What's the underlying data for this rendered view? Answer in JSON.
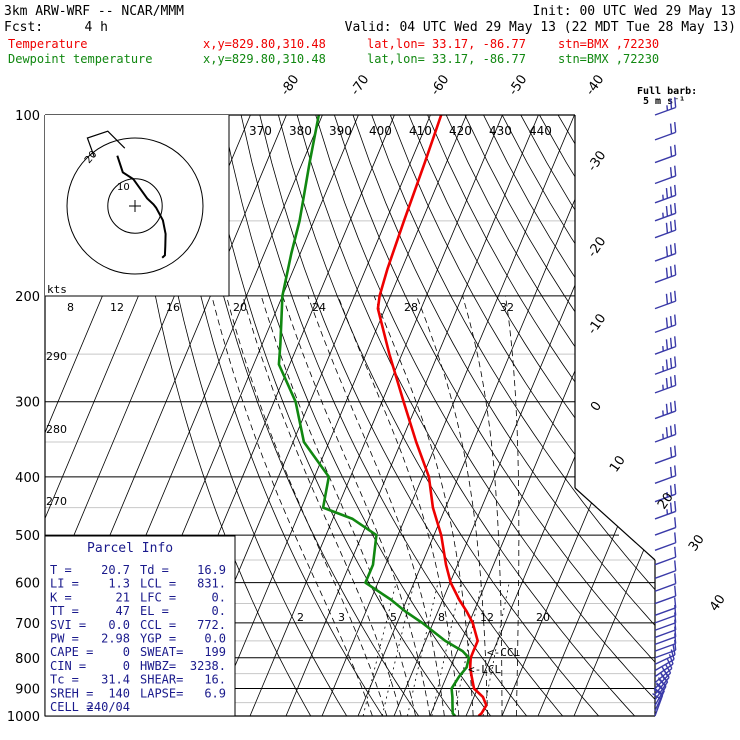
{
  "header": {
    "model": "3km ARW-WRF -- NCAR/MMM",
    "init": "Init: 00 UTC Wed 29 May 13",
    "fcst_label": "Fcst:",
    "fcst_value": "4 h",
    "valid": "Valid: 04 UTC Wed 29 May 13 (22 MDT Tue 28 May 13)"
  },
  "legend": [
    {
      "name": "Temperature",
      "xy": "x,y=829.80,310.48",
      "latlon": "lat,lon= 33.17, -86.77",
      "stn": "stn=BMX ,72230",
      "color": "#ee0000"
    },
    {
      "name": "Dewpoint temperature",
      "xy": "x,y=829.80,310.48",
      "latlon": "lat,lon= 33.17, -86.77",
      "stn": "stn=BMX ,72230",
      "color": "#118811"
    }
  ],
  "barb_legend": {
    "line1": "Full barb:",
    "line2": "5 m s⁻¹"
  },
  "parcel_info": {
    "title": "Parcel Info",
    "rows": [
      [
        "T   =",
        "20.7",
        "Td =",
        "16.9"
      ],
      [
        "LI  =",
        "1.3",
        "LCL =",
        "831."
      ],
      [
        "K   =",
        "21",
        "LFC =",
        "0."
      ],
      [
        "TT  =",
        "47",
        "EL  =",
        "0."
      ],
      [
        "SVI =",
        "0.0",
        "CCL =",
        "772."
      ],
      [
        "PW  =",
        "2.98",
        "YGP =",
        "0.0"
      ],
      [
        "CAPE =",
        "0",
        "SWEAT=",
        "199"
      ],
      [
        "CIN  =",
        "0",
        "HWBZ=",
        "3238."
      ],
      [
        "Tc  =",
        "31.4",
        "SHEAR=",
        "16."
      ],
      [
        "SREH =",
        "140",
        "LAPSE=",
        "6.9"
      ],
      [
        "CELL =",
        "240/04",
        "",
        ""
      ]
    ]
  },
  "hodograph": {
    "kts_label": "kts",
    "ring_labels": [
      "10",
      "20"
    ]
  },
  "chart_data": {
    "type": "line",
    "title": "",
    "ylabel": "",
    "y_scale": "log-pressure",
    "pressure_levels": [
      100,
      200,
      300,
      400,
      500,
      600,
      700,
      800,
      900,
      1000
    ],
    "ylim_hPa": [
      100,
      1000
    ],
    "temperature_isotherm_labels": [
      -80,
      -70,
      -60,
      -50,
      -40,
      -30,
      -20,
      -10,
      0,
      10,
      20,
      30,
      40
    ],
    "theta_labels": [
      370,
      380,
      390,
      400,
      410,
      420,
      430,
      440
    ],
    "theta_e_labels": [
      290,
      280,
      270
    ],
    "mixing_ratio_upper_labels": [
      8,
      12,
      16,
      20,
      24,
      28,
      32
    ],
    "mixing_ratio_lower_labels": [
      2,
      3,
      5,
      8,
      12,
      20
    ],
    "annotations": [
      "<-CCL",
      "<-LCL"
    ],
    "series": [
      {
        "name": "Temperature",
        "color": "#ee0000",
        "p": [
          1000,
          990,
          960,
          930,
          900,
          860,
          830,
          800,
          780,
          750,
          700,
          670,
          640,
          600,
          560,
          500,
          450,
          400,
          350,
          300,
          250,
          210,
          200,
          180,
          150,
          120,
          100
        ],
        "t": [
          23.5,
          24.0,
          24.4,
          22.5,
          19.0,
          17.0,
          15.5,
          14.5,
          14.5,
          14.5,
          11.0,
          8.0,
          4.5,
          0.2,
          -3.2,
          -8.0,
          -13.5,
          -18.2,
          -25.8,
          -34.0,
          -43.5,
          -52.0,
          -53.0,
          -54.0,
          -55.0,
          -56.0,
          -57.0
        ]
      },
      {
        "name": "Dewpoint temperature",
        "color": "#118811",
        "p": [
          1000,
          990,
          960,
          930,
          900,
          860,
          830,
          800,
          780,
          750,
          700,
          670,
          640,
          600,
          560,
          500,
          470,
          450,
          400,
          350,
          300,
          260,
          240,
          200,
          170,
          150,
          120,
          100
        ],
        "t": [
          17.0,
          16.0,
          15.0,
          14.0,
          12.8,
          13.5,
          14.5,
          14.0,
          11.5,
          5.5,
          -3.0,
          -9.0,
          -14.5,
          -23.5,
          -23.5,
          -26.0,
          -34.5,
          -44.0,
          -46.0,
          -57.0,
          -64.0,
          -73.0,
          -75.0,
          -80.0,
          -82.5,
          -84.0,
          -88.0,
          -91.0
        ]
      }
    ],
    "hodograph_trace": {
      "u": [
        8,
        8.8,
        8.9,
        9,
        8.2,
        6.2,
        5.4,
        3.6,
        -0.5,
        -3.6,
        -5.2
      ],
      "v": [
        -15.2,
        -14.5,
        -11.8,
        -8.2,
        -4.2,
        -0.5,
        0.5,
        2.2,
        7.9,
        9.9,
        14.8
      ],
      "color": "#000000"
    },
    "wind_barbs": {
      "color": "#3a3aa8",
      "p": [
        1000,
        980,
        960,
        940,
        920,
        900,
        880,
        860,
        840,
        820,
        800,
        780,
        760,
        740,
        720,
        700,
        680,
        650,
        620,
        590,
        560,
        530,
        500,
        470,
        440,
        410,
        380,
        350,
        320,
        290,
        270,
        250,
        230,
        210,
        190,
        175,
        160,
        150,
        140,
        130,
        120,
        110,
        100
      ],
      "speed_kt": [
        20,
        20,
        15,
        15,
        15,
        15,
        10,
        10,
        10,
        10,
        10,
        10,
        10,
        10,
        10,
        10,
        10,
        10,
        10,
        10,
        10,
        10,
        10,
        15,
        15,
        20,
        20,
        25,
        25,
        25,
        25,
        25,
        30,
        30,
        30,
        30,
        30,
        25,
        25,
        20,
        20,
        20,
        15
      ],
      "dir_deg": [
        200,
        205,
        210,
        215,
        220,
        225,
        230,
        235,
        240,
        245,
        250,
        250,
        250,
        250,
        250,
        250,
        250,
        250,
        250,
        250,
        250,
        250,
        250,
        250,
        250,
        250,
        250,
        250,
        250,
        250,
        250,
        250,
        250,
        250,
        250,
        250,
        250,
        250,
        250,
        250,
        250,
        250,
        250
      ]
    }
  }
}
